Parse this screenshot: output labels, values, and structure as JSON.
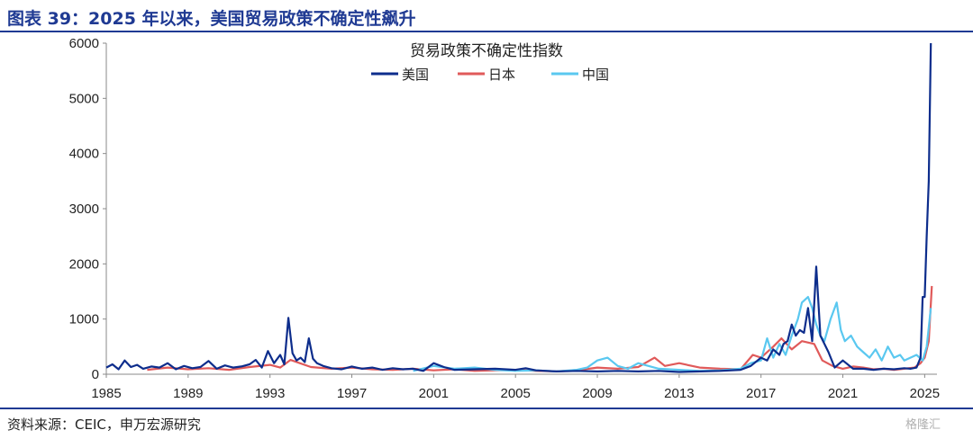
{
  "header": {
    "title": "图表 39：2025 年以来，美国贸易政策不确定性飙升"
  },
  "footer": {
    "source": "资料来源：CEIC，申万宏源研究",
    "watermark": "格隆汇"
  },
  "chart_data": {
    "type": "line",
    "title": "贸易政策不确定性指数",
    "xlabel": "",
    "ylabel": "",
    "xlim": [
      1985,
      2025.6
    ],
    "ylim": [
      0,
      6000
    ],
    "x_ticks": [
      "1985",
      "1989",
      "1993",
      "1997",
      "2001",
      "2005",
      "2009",
      "2013",
      "2017",
      "2021",
      "2025"
    ],
    "y_ticks": [
      "0",
      "1000",
      "2000",
      "3000",
      "4000",
      "5000",
      "6000"
    ],
    "grid": false,
    "legend_position": "top-center",
    "series": [
      {
        "name": "美国",
        "color": "#0d2d8c",
        "x": [
          1985.0,
          1985.3,
          1985.6,
          1985.9,
          1986.2,
          1986.5,
          1986.8,
          1987.2,
          1987.6,
          1988.0,
          1988.4,
          1988.8,
          1989.2,
          1989.6,
          1990.0,
          1990.4,
          1990.8,
          1991.2,
          1991.6,
          1992.0,
          1992.3,
          1992.6,
          1992.9,
          1993.2,
          1993.5,
          1993.7,
          1993.9,
          1994.1,
          1994.3,
          1994.5,
          1994.7,
          1994.9,
          1995.1,
          1995.3,
          1995.6,
          1996.0,
          1996.5,
          1997.0,
          1997.5,
          1998.0,
          1998.5,
          1999.0,
          1999.5,
          2000.0,
          2000.5,
          2001.0,
          2001.5,
          2002.0,
          2003.0,
          2004.0,
          2005.0,
          2005.5,
          2006.0,
          2007.0,
          2008.0,
          2009.0,
          2010.0,
          2011.0,
          2012.0,
          2013.0,
          2014.0,
          2015.0,
          2016.0,
          2016.5,
          2017.0,
          2017.3,
          2017.6,
          2017.9,
          2018.1,
          2018.3,
          2018.5,
          2018.7,
          2018.9,
          2019.1,
          2019.3,
          2019.5,
          2019.7,
          2019.9,
          2020.1,
          2020.3,
          2020.6,
          2021.0,
          2021.5,
          2022.0,
          2022.5,
          2023.0,
          2023.5,
          2024.0,
          2024.3,
          2024.6,
          2024.8,
          2024.9,
          2025.0,
          2025.1,
          2025.2,
          2025.3
        ],
        "values": [
          120,
          180,
          90,
          250,
          130,
          170,
          100,
          140,
          120,
          200,
          90,
          150,
          110,
          130,
          240,
          100,
          160,
          120,
          140,
          180,
          260,
          120,
          420,
          200,
          350,
          180,
          1020,
          380,
          250,
          300,
          220,
          650,
          280,
          200,
          150,
          110,
          90,
          140,
          100,
          120,
          80,
          110,
          90,
          100,
          60,
          200,
          130,
          80,
          90,
          100,
          80,
          110,
          70,
          50,
          60,
          50,
          60,
          50,
          60,
          40,
          50,
          60,
          80,
          150,
          300,
          250,
          450,
          350,
          550,
          600,
          900,
          700,
          800,
          750,
          1200,
          600,
          1950,
          700,
          550,
          400,
          120,
          250,
          100,
          100,
          80,
          100,
          90,
          110,
          100,
          120,
          300,
          1400,
          1400,
          2500,
          3500,
          6000
        ]
      },
      {
        "name": "日本",
        "color": "#e05a5a",
        "x": [
          1987.0,
          1988.0,
          1989.0,
          1990.0,
          1991.0,
          1992.0,
          1993.0,
          1993.5,
          1994.0,
          1995.0,
          1996.0,
          1997.0,
          1998.0,
          1999.0,
          2000.0,
          2001.0,
          2002.0,
          2003.0,
          2004.0,
          2005.0,
          2006.0,
          2007.0,
          2008.0,
          2009.0,
          2010.0,
          2011.0,
          2011.8,
          2012.3,
          2013.0,
          2014.0,
          2015.0,
          2016.0,
          2016.6,
          2017.0,
          2017.6,
          2018.0,
          2018.5,
          2019.0,
          2019.6,
          2020.0,
          2020.5,
          2021.0,
          2021.5,
          2022.0,
          2022.5,
          2023.0,
          2023.5,
          2024.0,
          2024.5,
          2024.8,
          2025.0,
          2025.2,
          2025.35
        ],
        "values": [
          80,
          120,
          90,
          110,
          80,
          130,
          170,
          120,
          260,
          130,
          100,
          120,
          90,
          80,
          100,
          70,
          90,
          60,
          70,
          80,
          60,
          50,
          70,
          120,
          100,
          130,
          300,
          150,
          200,
          120,
          100,
          90,
          350,
          300,
          500,
          650,
          450,
          600,
          550,
          250,
          150,
          100,
          140,
          120,
          90,
          100,
          80,
          100,
          120,
          200,
          300,
          600,
          1600
        ]
      },
      {
        "name": "中国",
        "color": "#5ac8f0",
        "x": [
          2000.0,
          2001.0,
          2002.0,
          2003.0,
          2004.0,
          2005.0,
          2006.0,
          2007.0,
          2008.0,
          2008.5,
          2009.0,
          2009.5,
          2010.0,
          2010.5,
          2011.0,
          2012.0,
          2013.0,
          2014.0,
          2015.0,
          2016.0,
          2016.5,
          2017.0,
          2017.3,
          2017.6,
          2017.9,
          2018.2,
          2018.5,
          2018.8,
          2019.0,
          2019.3,
          2019.5,
          2019.7,
          2019.9,
          2020.1,
          2020.4,
          2020.7,
          2020.9,
          2021.1,
          2021.4,
          2021.7,
          2022.0,
          2022.3,
          2022.6,
          2022.9,
          2023.2,
          2023.5,
          2023.8,
          2024.0,
          2024.3,
          2024.6,
          2024.9,
          2025.1,
          2025.3
        ],
        "values": [
          60,
          150,
          100,
          120,
          80,
          60,
          70,
          50,
          80,
          120,
          250,
          300,
          150,
          100,
          200,
          100,
          80,
          60,
          70,
          100,
          200,
          250,
          650,
          300,
          550,
          350,
          700,
          1000,
          1300,
          1400,
          1200,
          900,
          700,
          600,
          1000,
          1300,
          800,
          600,
          700,
          500,
          400,
          300,
          450,
          250,
          500,
          300,
          350,
          250,
          300,
          350,
          250,
          500,
          1200
        ]
      }
    ]
  }
}
